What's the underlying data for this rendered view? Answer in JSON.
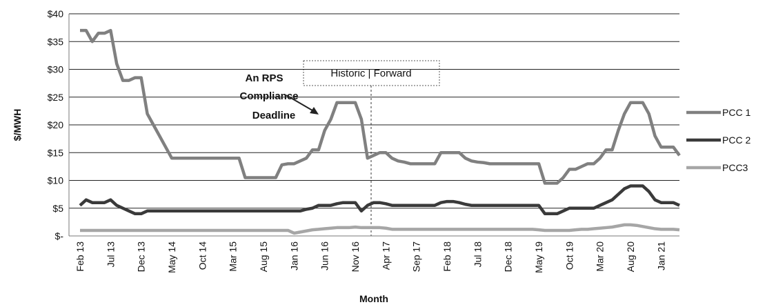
{
  "chart_data": {
    "type": "line",
    "y_axis_label": "$/MWH",
    "x_axis_label": "Month",
    "annotation": [
      "An RPS",
      "Compliance",
      "Deadline"
    ],
    "divider_label": "Historic | Forward",
    "categories": [
      "Feb 13",
      null,
      null,
      null,
      null,
      "Jul 13",
      null,
      null,
      null,
      null,
      "Dec 13",
      null,
      null,
      null,
      null,
      "May 14",
      null,
      null,
      null,
      null,
      "Oct 14",
      null,
      null,
      null,
      null,
      "Mar 15",
      null,
      null,
      null,
      null,
      "Aug 15",
      null,
      null,
      null,
      null,
      "Jan 16",
      null,
      null,
      null,
      null,
      "Jun 16",
      null,
      null,
      null,
      null,
      "Nov 16",
      null,
      null,
      null,
      null,
      "Apr 17",
      null,
      null,
      null,
      null,
      "Sep 17",
      null,
      null,
      null,
      null,
      "Feb 18",
      null,
      null,
      null,
      null,
      "Jul 18",
      null,
      null,
      null,
      null,
      "Dec 18",
      null,
      null,
      null,
      null,
      "May 19",
      null,
      null,
      null,
      null,
      "Oct 19",
      null,
      null,
      null,
      null,
      "Mar 20",
      null,
      null,
      null,
      null,
      "Aug 20",
      null,
      null,
      null,
      null,
      "Jan 21",
      null,
      null,
      null
    ],
    "series": [
      {
        "name": "PCC 1",
        "color": "#808080",
        "values": [
          37,
          37,
          35,
          36.5,
          36.5,
          37,
          31,
          28,
          28,
          28.5,
          28.5,
          22,
          20,
          18,
          16,
          14,
          14,
          14,
          14,
          14,
          14,
          14,
          14,
          14,
          14,
          14,
          14,
          10.5,
          10.5,
          10.5,
          10.5,
          10.5,
          10.5,
          12.8,
          13,
          13,
          13.5,
          14,
          15.5,
          15.5,
          19,
          21,
          24,
          24,
          24,
          24,
          21,
          14,
          14.5,
          15,
          15,
          14,
          13.5,
          13.3,
          13,
          13,
          13,
          13,
          13,
          15,
          15,
          15,
          15,
          14,
          13.5,
          13.3,
          13.2,
          13,
          13,
          13,
          13,
          13,
          13,
          13,
          13,
          13,
          9.5,
          9.5,
          9.5,
          10.5,
          12,
          12,
          12.5,
          13,
          13,
          14,
          15.5,
          15.5,
          19,
          22,
          24,
          24,
          24,
          22,
          18,
          16,
          16,
          16,
          14.5
        ]
      },
      {
        "name": "PCC 2",
        "color": "#3a3a3a",
        "values": [
          5.5,
          6.5,
          6,
          6,
          6,
          6.5,
          5.5,
          5,
          4.5,
          4,
          4,
          4.5,
          4.5,
          4.5,
          4.5,
          4.5,
          4.5,
          4.5,
          4.5,
          4.5,
          4.5,
          4.5,
          4.5,
          4.5,
          4.5,
          4.5,
          4.5,
          4.5,
          4.5,
          4.5,
          4.5,
          4.5,
          4.5,
          4.5,
          4.5,
          4.5,
          4.5,
          4.8,
          5,
          5.5,
          5.5,
          5.5,
          5.8,
          6,
          6,
          6,
          4.5,
          5.5,
          6,
          6,
          5.8,
          5.5,
          5.5,
          5.5,
          5.5,
          5.5,
          5.5,
          5.5,
          5.5,
          6,
          6.2,
          6.2,
          6,
          5.7,
          5.5,
          5.5,
          5.5,
          5.5,
          5.5,
          5.5,
          5.5,
          5.5,
          5.5,
          5.5,
          5.5,
          5.5,
          4,
          4,
          4,
          4.5,
          5,
          5,
          5,
          5,
          5,
          5.5,
          6,
          6.5,
          7.5,
          8.5,
          9,
          9,
          9,
          8,
          6.5,
          6,
          6,
          6,
          5.5
        ]
      },
      {
        "name": "PCC3",
        "color": "#a6a6a6",
        "values": [
          1,
          1,
          1,
          1,
          1,
          1,
          1,
          1,
          1,
          1,
          1,
          1,
          1,
          1,
          1,
          1,
          1,
          1,
          1,
          1,
          1,
          1,
          1,
          1,
          1,
          1,
          1,
          1,
          1,
          1,
          1,
          1,
          1,
          1,
          1,
          0.5,
          0.7,
          0.9,
          1.1,
          1.2,
          1.3,
          1.4,
          1.5,
          1.5,
          1.5,
          1.6,
          1.5,
          1.5,
          1.5,
          1.5,
          1.4,
          1.2,
          1.2,
          1.2,
          1.2,
          1.2,
          1.2,
          1.2,
          1.2,
          1.2,
          1.2,
          1.2,
          1.2,
          1.2,
          1.2,
          1.2,
          1.2,
          1.2,
          1.2,
          1.2,
          1.2,
          1.2,
          1.2,
          1.2,
          1.2,
          1.1,
          1,
          1,
          1,
          1,
          1,
          1.1,
          1.2,
          1.2,
          1.3,
          1.4,
          1.5,
          1.6,
          1.8,
          2,
          2,
          1.9,
          1.7,
          1.5,
          1.3,
          1.2,
          1.2,
          1.2,
          1.1
        ]
      }
    ],
    "ylim": [
      0,
      40
    ],
    "yticks": [
      {
        "value": 0,
        "label": "$-"
      },
      {
        "value": 5,
        "label": "$5"
      },
      {
        "value": 10,
        "label": "$10"
      },
      {
        "value": 15,
        "label": "$15"
      },
      {
        "value": 20,
        "label": "$20"
      },
      {
        "value": 25,
        "label": "$25"
      },
      {
        "value": 30,
        "label": "$30"
      },
      {
        "value": 35,
        "label": "$35"
      },
      {
        "value": 40,
        "label": "$40"
      }
    ],
    "grid": true,
    "legend": "right"
  }
}
